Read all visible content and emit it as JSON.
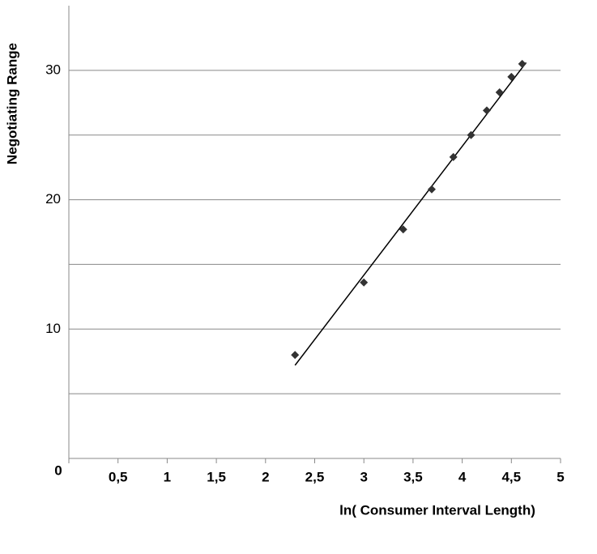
{
  "chart_data": {
    "type": "scatter",
    "x_label": "ln( Consumer Interval Length)",
    "y_label": "Negotiating Range",
    "x": [
      2.3,
      3.0,
      3.4,
      3.69,
      3.91,
      4.09,
      4.25,
      4.38,
      4.5,
      4.61
    ],
    "series": [
      {
        "color": "#333333",
        "values": [
          8.0,
          13.6,
          17.7,
          20.8,
          23.3,
          25.0,
          26.9,
          28.3,
          29.5,
          30.5
        ]
      }
    ],
    "trendline": {
      "x": [
        2.3,
        4.65
      ],
      "y": [
        7.2,
        30.6
      ],
      "color": "#000000"
    },
    "xlim": [
      0,
      5
    ],
    "xticks": [
      0,
      {
        "value": 0.5,
        "label": "0,5"
      },
      1,
      {
        "value": 1.5,
        "label": "1,5"
      },
      2,
      {
        "value": 2.5,
        "label": "2,5"
      },
      3,
      {
        "value": 3.5,
        "label": "3,5"
      },
      4,
      {
        "value": 4.5,
        "label": "4,5"
      },
      5
    ],
    "ylim": [
      0,
      35
    ],
    "yticks": [
      10,
      20,
      30
    ],
    "y_minor_ticks": [
      5,
      15,
      25
    ],
    "grid": true
  }
}
